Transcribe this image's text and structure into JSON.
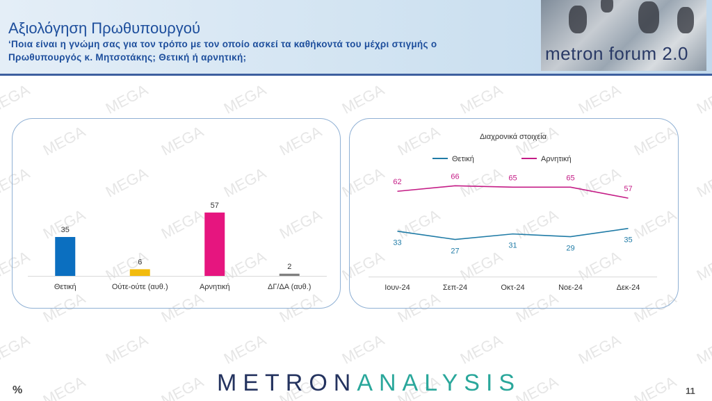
{
  "header": {
    "title": "Αξιολόγηση Πρωθυπουργού",
    "subtitle": "‘Ποια είναι η γνώμη σας για τον τρόπο με τον οποίο ασκεί τα καθήκοντά του μέχρι στιγμής ο Πρωθυπουργός κ. Μητσοτάκης; Θετική ή αρνητική;",
    "forum_logo": "metron forum 2.0"
  },
  "watermark_text": "MEGA",
  "footer": {
    "logo_part1": "METRON",
    "logo_part2": "ANALYSIS",
    "unit": "%",
    "page": "11"
  },
  "chart_data": [
    {
      "type": "bar",
      "categories": [
        "Θετική",
        "Ούτε-ούτε (αυθ.)",
        "Αρνητική",
        "ΔΓ/ΔΑ (αυθ.)"
      ],
      "values": [
        35,
        6,
        57,
        2
      ],
      "colors": [
        "#0b6fc0",
        "#f2bb0e",
        "#e6157f",
        "#808080"
      ],
      "ylim": [
        0,
        100
      ]
    },
    {
      "type": "line",
      "title": "Διαχρονικά στοιχεία",
      "categories": [
        "Ιουν-24",
        "Σεπ-24",
        "Οκτ-24",
        "Νοε-24",
        "Δεκ-24"
      ],
      "series": [
        {
          "name": "Θετική",
          "values": [
            33,
            27,
            31,
            29,
            35
          ],
          "color": "#1f7ba6"
        },
        {
          "name": "Αρνητική",
          "values": [
            62,
            66,
            65,
            65,
            57
          ],
          "color": "#c41c86"
        }
      ],
      "ylim": [
        0,
        100
      ],
      "legend": "top"
    }
  ]
}
